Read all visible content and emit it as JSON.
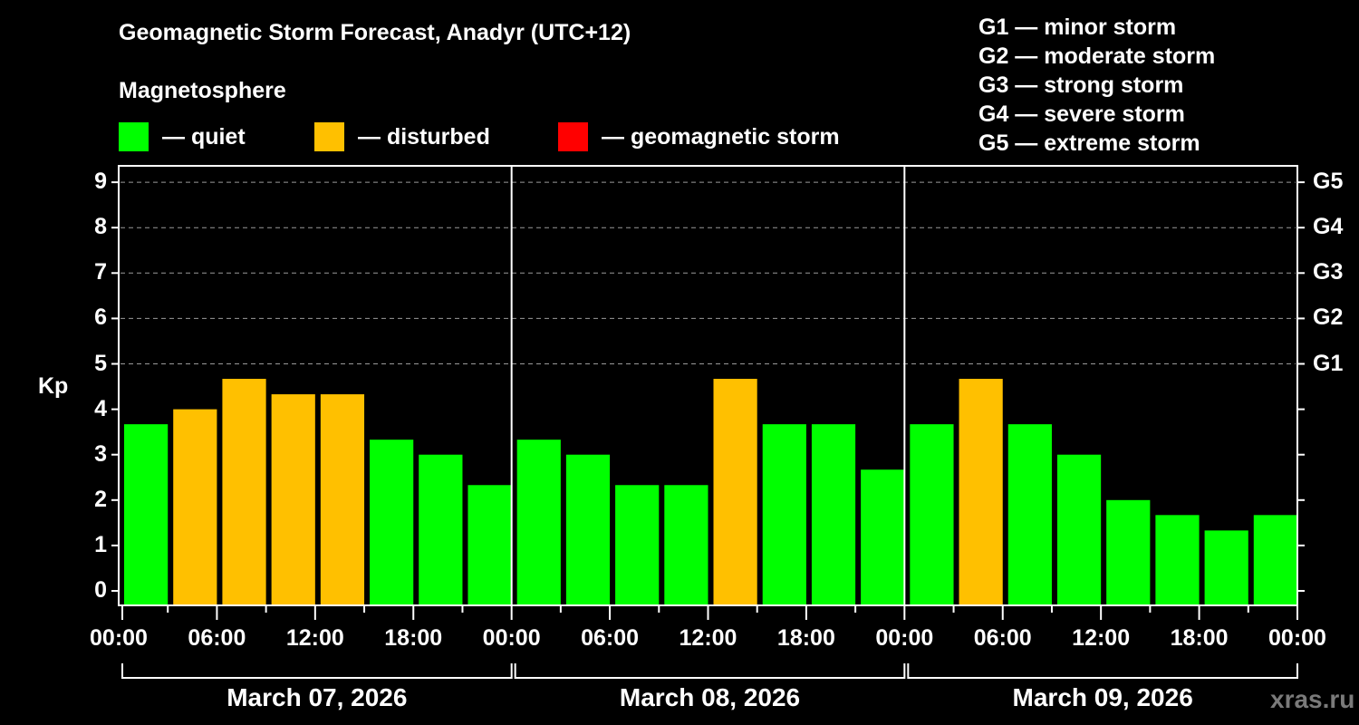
{
  "header": {
    "title": "Geomagnetic Storm Forecast, Anadyr (UTC+12)",
    "subtitle": "Magnetosphere"
  },
  "legend": [
    {
      "label": "— quiet",
      "color": "#00ff00"
    },
    {
      "label": "— disturbed",
      "color": "#ffc000"
    },
    {
      "label": "— geomagnetic storm",
      "color": "#ff0000"
    }
  ],
  "g_scale_legend": [
    "G1 — minor storm",
    "G2 — moderate storm",
    "G3 — strong storm",
    "G4 — severe storm",
    "G5 — extreme storm"
  ],
  "watermark": "xras.ru",
  "chart_data": {
    "type": "bar",
    "title": "Geomagnetic Storm Forecast, Anadyr (UTC+12)",
    "subtitle": "Magnetosphere",
    "xlabel": "",
    "ylabel": "Kp",
    "ylim": [
      0,
      9
    ],
    "yticks": [
      0,
      1,
      2,
      3,
      4,
      5,
      6,
      7,
      8,
      9
    ],
    "right_axis_ticks": [
      {
        "kp": 5,
        "label": "G1"
      },
      {
        "kp": 6,
        "label": "G2"
      },
      {
        "kp": 7,
        "label": "G3"
      },
      {
        "kp": 8,
        "label": "G4"
      },
      {
        "kp": 9,
        "label": "G5"
      }
    ],
    "grid": "horizontal dashed at Kp 5-9",
    "xtick_labels": [
      "00:00",
      "06:00",
      "12:00",
      "18:00",
      "00:00",
      "06:00",
      "12:00",
      "18:00",
      "00:00",
      "06:00",
      "12:00",
      "18:00",
      "00:00"
    ],
    "days": [
      "March 07, 2026",
      "March 08, 2026",
      "March 09, 2026"
    ],
    "interval_hours": 3,
    "categories": [
      "Mar 07 00-03",
      "Mar 07 03-06",
      "Mar 07 06-09",
      "Mar 07 09-12",
      "Mar 07 12-15",
      "Mar 07 15-18",
      "Mar 07 18-21",
      "Mar 07 21-24",
      "Mar 08 00-03",
      "Mar 08 03-06",
      "Mar 08 06-09",
      "Mar 08 09-12",
      "Mar 08 12-15",
      "Mar 08 15-18",
      "Mar 08 18-21",
      "Mar 08 21-24",
      "Mar 09 00-03",
      "Mar 09 03-06",
      "Mar 09 06-09",
      "Mar 09 09-12",
      "Mar 09 12-15",
      "Mar 09 15-18",
      "Mar 09 18-21",
      "Mar 09 21-24"
    ],
    "values": [
      3.67,
      4.0,
      4.67,
      4.33,
      4.33,
      3.33,
      3.0,
      2.33,
      3.33,
      3.0,
      2.33,
      2.33,
      4.67,
      3.67,
      3.67,
      2.67,
      3.67,
      4.67,
      3.67,
      3.0,
      2.0,
      1.67,
      1.33,
      1.67
    ],
    "status": [
      "quiet",
      "disturbed",
      "disturbed",
      "disturbed",
      "disturbed",
      "quiet",
      "quiet",
      "quiet",
      "quiet",
      "quiet",
      "quiet",
      "quiet",
      "disturbed",
      "quiet",
      "quiet",
      "quiet",
      "quiet",
      "disturbed",
      "quiet",
      "quiet",
      "quiet",
      "quiet",
      "quiet",
      "quiet"
    ],
    "colors": {
      "quiet": "#00ff00",
      "disturbed": "#ffc000",
      "storm": "#ff0000"
    },
    "legend": [
      "quiet",
      "disturbed",
      "geomagnetic storm"
    ]
  }
}
